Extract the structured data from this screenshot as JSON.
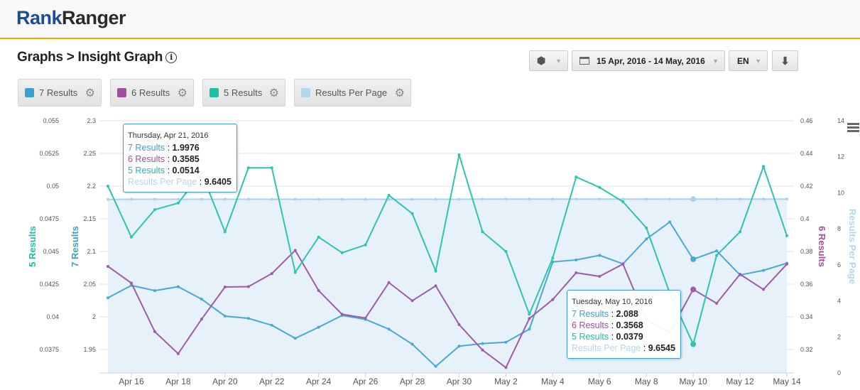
{
  "header": {
    "logo_part1": "Rank",
    "logo_part2": "Ranger"
  },
  "page": {
    "title": "Graphs > Insight Graph",
    "info_icon": "info-icon"
  },
  "toolbar": {
    "view_icon": "cube-icon",
    "date_range": "15 Apr, 2016 - 14 May, 2016",
    "calendar_icon": "calendar-icon",
    "language": "EN",
    "download_icon": "download-icon"
  },
  "legend": [
    {
      "label": "7 Results",
      "color": "#3a9fd0"
    },
    {
      "label": "6 Results",
      "color": "#a24e9e"
    },
    {
      "label": "5 Results",
      "color": "#1cc0a2"
    },
    {
      "label": "Results Per Page",
      "color": "#b3d8ec"
    }
  ],
  "tooltips": [
    {
      "date": "Thursday, Apr 21, 2016",
      "rows": [
        {
          "label": "7 Results",
          "value": "1.9976"
        },
        {
          "label": "6 Results",
          "value": "0.3585"
        },
        {
          "label": "5 Results",
          "value": "0.0514"
        },
        {
          "label": "Results Per Page",
          "value": "9.6405"
        }
      ]
    },
    {
      "date": "Tuesday, May 10, 2016",
      "rows": [
        {
          "label": "7 Results",
          "value": "2.088"
        },
        {
          "label": "6 Results",
          "value": "0.3568"
        },
        {
          "label": "5 Results",
          "value": "0.0379"
        },
        {
          "label": "Results Per Page",
          "value": "9.6545"
        }
      ]
    }
  ],
  "chart_data": {
    "type": "line",
    "x": [
      "Apr 15",
      "Apr 16",
      "Apr 17",
      "Apr 18",
      "Apr 19",
      "Apr 20",
      "Apr 21",
      "Apr 22",
      "Apr 23",
      "Apr 24",
      "Apr 25",
      "Apr 26",
      "Apr 27",
      "Apr 28",
      "Apr 29",
      "Apr 30",
      "May 1",
      "May 2",
      "May 3",
      "May 4",
      "May 5",
      "May 6",
      "May 7",
      "May 8",
      "May 9",
      "May 10",
      "May 11",
      "May 12",
      "May 13",
      "May 14"
    ],
    "x_tick_labels": [
      "Apr 16",
      "Apr 18",
      "Apr 20",
      "Apr 22",
      "Apr 24",
      "Apr 26",
      "Apr 28",
      "Apr 30",
      "May 2",
      "May 4",
      "May 6",
      "May 8",
      "May 10",
      "May 12",
      "May 14"
    ],
    "grid": true,
    "axes": [
      {
        "title": "5 Results",
        "side": "left-outer",
        "ylim": [
          0.0357,
          0.055
        ],
        "ticks": [
          "0.055",
          "0.0525",
          "0.05",
          "0.0475",
          "0.045",
          "0.0425",
          "0.04",
          "0.0375"
        ],
        "color": "#1cc0a2"
      },
      {
        "title": "7 Results",
        "side": "left",
        "ylim": [
          1.914,
          2.3
        ],
        "ticks": [
          "2.3",
          "2.25",
          "2.2",
          "2.15",
          "2.1",
          "2.05",
          "2",
          "1.95"
        ],
        "color": "#3a9fd0"
      },
      {
        "title": "6 Results",
        "side": "right",
        "ylim": [
          0.3057,
          0.46
        ],
        "ticks": [
          "0.46",
          "0.44",
          "0.42",
          "0.4",
          "0.38",
          "0.36",
          "0.34",
          "0.32"
        ],
        "color": "#a24e9e"
      },
      {
        "title": "Results Per Page",
        "side": "right-outer",
        "ylim": [
          0,
          14
        ],
        "ticks": [
          "14",
          "12",
          "10",
          "8",
          "6",
          "4",
          "2",
          "0"
        ],
        "color": "#b3d8ec"
      }
    ],
    "series": [
      {
        "name": "7 Results",
        "axis": 1,
        "color": "#4aa8d4",
        "values": [
          2.029,
          2.048,
          2.04,
          2.046,
          2.027,
          2.001,
          1.9976,
          1.987,
          1.967,
          1.984,
          2.002,
          1.996,
          1.981,
          1.958,
          1.924,
          1.955,
          1.959,
          1.961,
          1.981,
          2.084,
          2.087,
          2.094,
          2.081,
          2.119,
          2.145,
          2.088,
          2.101,
          2.064,
          2.071,
          2.082
        ]
      },
      {
        "name": "6 Results",
        "axis": 2,
        "color": "#a05aa6",
        "values": [
          0.3709,
          0.3607,
          0.331,
          0.3175,
          0.3386,
          0.3583,
          0.3585,
          0.3665,
          0.3807,
          0.3561,
          0.3416,
          0.3393,
          0.361,
          0.3499,
          0.359,
          0.3353,
          0.3197,
          0.309,
          0.339,
          0.3506,
          0.367,
          0.3648,
          0.3723,
          0.3383,
          0.3306,
          0.3568,
          0.3483,
          0.3661,
          0.3568,
          0.3723
        ]
      },
      {
        "name": "5 Results",
        "axis": 0,
        "color": "#2ec4ae",
        "values": [
          0.05,
          0.0461,
          0.0482,
          0.0487,
          0.051,
          0.0465,
          0.0514,
          0.0514,
          0.0434,
          0.0461,
          0.0449,
          0.0455,
          0.0493,
          0.0479,
          0.0435,
          0.0524,
          0.0465,
          0.045,
          0.0402,
          0.0445,
          0.0507,
          0.0499,
          0.0488,
          0.0468,
          0.0418,
          0.0379,
          0.0447,
          0.0465,
          0.0515,
          0.0462
        ]
      },
      {
        "name": "Results Per Page",
        "axis": 3,
        "color": "#a9d3ea",
        "type": "area",
        "values": [
          9.63,
          9.64,
          9.64,
          9.64,
          9.64,
          9.64,
          9.6405,
          9.64,
          9.64,
          9.64,
          9.64,
          9.64,
          9.64,
          9.64,
          9.64,
          9.64,
          9.65,
          9.65,
          9.65,
          9.65,
          9.65,
          9.65,
          9.65,
          9.65,
          9.65,
          9.6545,
          9.65,
          9.65,
          9.65,
          9.65
        ]
      }
    ],
    "highlighted_index": 25
  }
}
